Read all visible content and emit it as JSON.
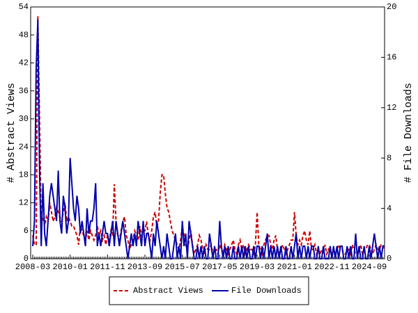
{
  "chart_data": {
    "type": "line",
    "ylabel": "# Abstract Views",
    "y2label": "# File Downloads",
    "ylim": [
      0,
      54
    ],
    "yticks": [
      0,
      6,
      12,
      18,
      24,
      30,
      36,
      42,
      48,
      54
    ],
    "y2lim": [
      0,
      20
    ],
    "y2ticks": [
      0,
      4,
      8,
      12,
      16,
      20
    ],
    "legend": "bottom",
    "categories": [
      "2008-03",
      null,
      null,
      null,
      null,
      null,
      null,
      null,
      null,
      null,
      null,
      null,
      null,
      null,
      null,
      null,
      null,
      null,
      null,
      null,
      null,
      null,
      "2010-01",
      null,
      null,
      null,
      null,
      null,
      null,
      null,
      null,
      null,
      null,
      null,
      null,
      null,
      null,
      null,
      null,
      null,
      null,
      null,
      null,
      null,
      "2011-11",
      null,
      null,
      null,
      null,
      null,
      null,
      null,
      null,
      null,
      null,
      null,
      null,
      null,
      null,
      null,
      null,
      null,
      null,
      null,
      null,
      null,
      "2013-09",
      null,
      null,
      null,
      null,
      null,
      null,
      null,
      null,
      null,
      null,
      null,
      null,
      null,
      null,
      null,
      null,
      null,
      null,
      null,
      null,
      null,
      "2015-07",
      null,
      null,
      null,
      null,
      null,
      null,
      null,
      null,
      null,
      null,
      null,
      null,
      null,
      null,
      null,
      null,
      null,
      null,
      null,
      null,
      null,
      "2017-05",
      null,
      null,
      null,
      null,
      null,
      null,
      null,
      null,
      null,
      null,
      null,
      null,
      null,
      null,
      null,
      null,
      null,
      null,
      null,
      null,
      null,
      "2019-03",
      null,
      null,
      null,
      null,
      null,
      null,
      null,
      null,
      null,
      null,
      null,
      null,
      null,
      null,
      null,
      null,
      null,
      null,
      null,
      null,
      null,
      "2021-01",
      null,
      null,
      null,
      null,
      null,
      null,
      null,
      null,
      null,
      null,
      null,
      null,
      null,
      null,
      null,
      null,
      null,
      null,
      null,
      null,
      null,
      "2022-11",
      null,
      null,
      null,
      null,
      null,
      null,
      null,
      null,
      null,
      null,
      null,
      null,
      null,
      null,
      null,
      null,
      null,
      null,
      null,
      null,
      null,
      "2024-09",
      null,
      null,
      null,
      null,
      null,
      null,
      null,
      null,
      null
    ],
    "series": [
      {
        "name": "Abstract Views",
        "color": "#cc0000",
        "dash": true,
        "axis": "y",
        "values": [
          5,
          3,
          3,
          52,
          30,
          8,
          9,
          7,
          9,
          8,
          12,
          10,
          8,
          9,
          11,
          10,
          9,
          8,
          10,
          12,
          8,
          9,
          8,
          7,
          7,
          6,
          5,
          3,
          7,
          6,
          5,
          4,
          6,
          4,
          6,
          5,
          4,
          5,
          7,
          5,
          6,
          4,
          5,
          3,
          5,
          4,
          6,
          5,
          16,
          8,
          5,
          4,
          6,
          8,
          9,
          5,
          4,
          2,
          3,
          4,
          6,
          5,
          4,
          7,
          5,
          6,
          6,
          8,
          5,
          4,
          6,
          9,
          10,
          7,
          8,
          14,
          18,
          18,
          14,
          11,
          10,
          8,
          6,
          5,
          4,
          3,
          2,
          4,
          7,
          5,
          3,
          2,
          4,
          6,
          3,
          1,
          2,
          3,
          5,
          4,
          2,
          1,
          3,
          2,
          2,
          3,
          1,
          2,
          2,
          1,
          3,
          2,
          1,
          3,
          2,
          1,
          2,
          3,
          4,
          2,
          1,
          3,
          4,
          2,
          3,
          1,
          2,
          3,
          2,
          2,
          1,
          3,
          10,
          3,
          2,
          1,
          3,
          4,
          5,
          5,
          3,
          2,
          4,
          5,
          2,
          1,
          2,
          3,
          2,
          1,
          2,
          3,
          4,
          4,
          10,
          5,
          3,
          4,
          3,
          5,
          6,
          4,
          3,
          6,
          2,
          2,
          3,
          1,
          2,
          1,
          2,
          1,
          3,
          1,
          2,
          1,
          1,
          2,
          1,
          2,
          3,
          2,
          2,
          1,
          1,
          2,
          2,
          1,
          3,
          2,
          1,
          1,
          2,
          3,
          1,
          2,
          2,
          3,
          3,
          2,
          1,
          2,
          3,
          2,
          2,
          3,
          3,
          2
        ]
      },
      {
        "name": "File Downloads",
        "color": "#0000aa",
        "dash": false,
        "axis": "y2",
        "values": [
          1,
          3,
          15,
          19,
          7,
          1,
          6,
          2,
          1,
          3,
          5,
          6,
          5,
          4,
          3,
          7,
          3,
          2,
          5,
          4,
          2,
          3,
          8,
          6,
          4,
          3,
          5,
          4,
          2,
          3,
          2,
          1,
          4,
          2,
          3,
          3,
          4,
          6,
          1,
          2,
          1,
          2,
          3,
          2,
          2,
          1,
          2,
          3,
          1,
          3,
          2,
          1,
          2,
          3,
          2,
          1,
          0,
          1,
          2,
          1,
          2,
          1,
          3,
          2,
          1,
          3,
          1,
          2,
          2,
          1,
          0,
          2,
          1,
          3,
          2,
          1,
          0,
          1,
          0,
          2,
          1,
          0,
          0,
          1,
          2,
          0,
          1,
          0,
          3,
          1,
          2,
          0,
          3,
          2,
          1,
          0,
          0,
          1,
          0,
          1,
          0,
          1,
          0,
          0,
          2,
          1,
          0,
          1,
          0,
          0,
          3,
          1,
          0,
          1,
          0,
          1,
          0,
          0,
          1,
          0,
          0,
          1,
          0,
          1,
          0,
          1,
          0,
          1,
          0,
          0,
          1,
          0,
          1,
          1,
          0,
          1,
          0,
          1,
          2,
          0,
          1,
          0,
          1,
          0,
          1,
          0,
          1,
          0,
          0,
          1,
          0,
          0,
          1,
          0,
          1,
          2,
          0,
          1,
          0,
          1,
          1,
          0,
          1,
          0,
          1,
          1,
          0,
          0,
          1,
          0,
          0,
          1,
          0,
          0,
          0,
          1,
          0,
          1,
          0,
          1,
          0,
          1,
          1,
          0,
          0,
          1,
          0,
          1,
          0,
          0,
          2,
          0,
          1,
          0,
          0,
          1,
          0,
          0,
          1,
          0,
          1,
          2,
          1,
          0,
          1,
          0,
          1,
          1
        ]
      }
    ]
  }
}
